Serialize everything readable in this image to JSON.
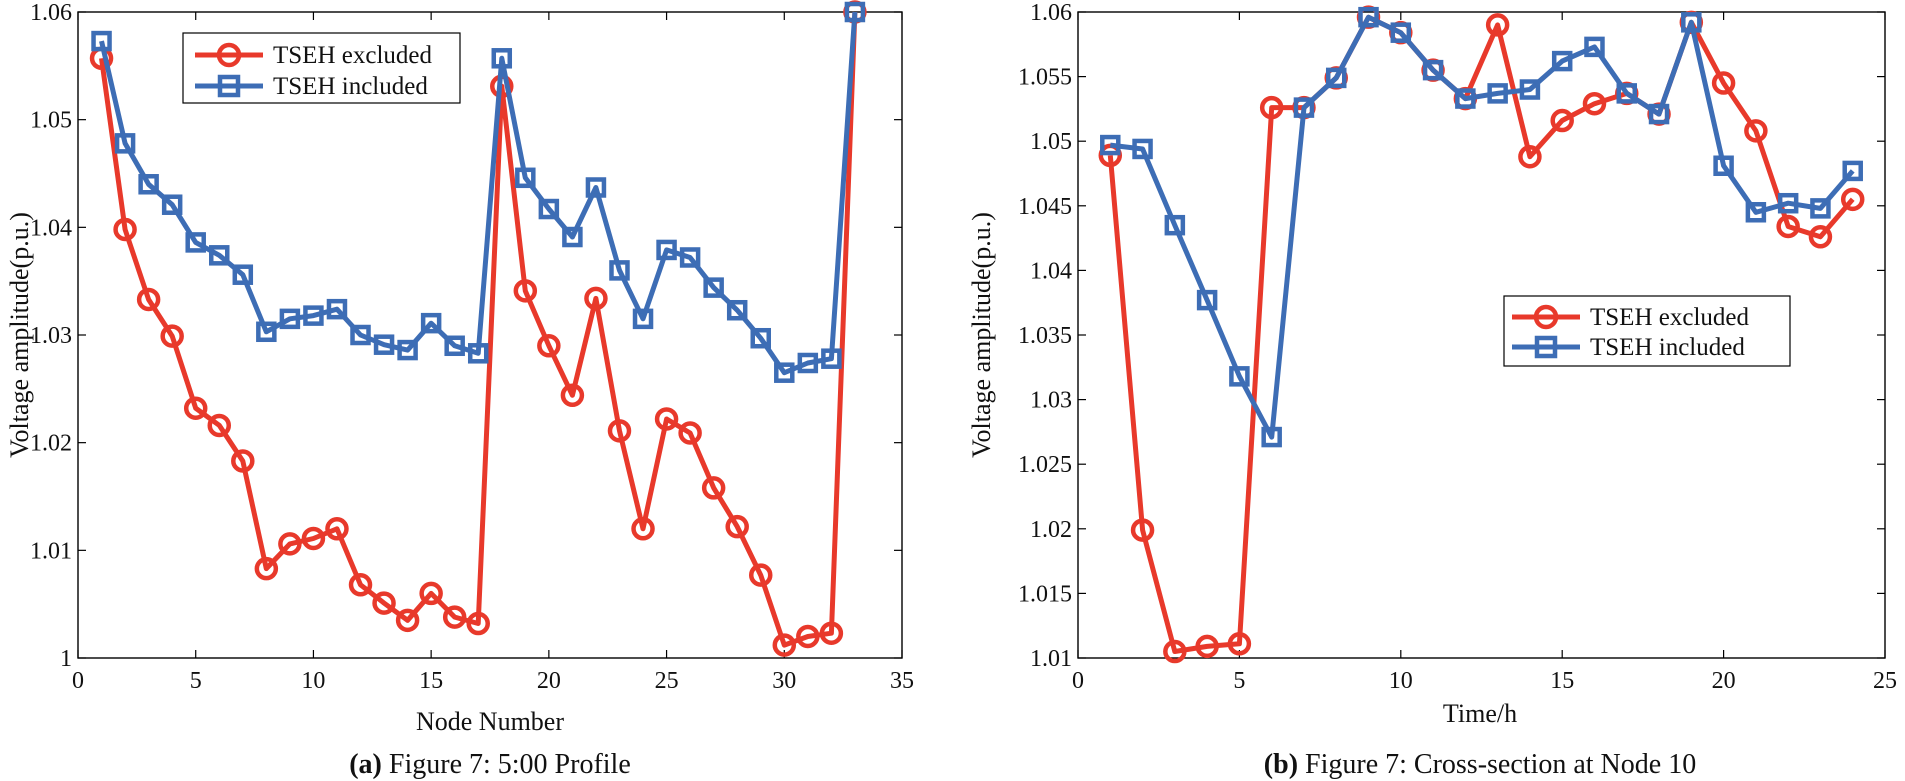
{
  "colors": {
    "excluded": "#E8392B",
    "included": "#3D6DB5"
  },
  "chart_data": [
    {
      "type": "line",
      "panel": "a",
      "caption_letter": "(a)",
      "caption_text": " Figure 7: 5:00 Profile",
      "xlabel": "Node Number",
      "ylabel": "Voltage amplitude(p.u.)",
      "xlim": [
        0,
        35
      ],
      "ylim": [
        1,
        1.06
      ],
      "xticks": [
        0,
        5,
        10,
        15,
        20,
        25,
        30,
        35
      ],
      "xtick_labels": [
        "0",
        "5",
        "10",
        "15",
        "20",
        "25",
        "30",
        "35"
      ],
      "yticks": [
        1,
        1.01,
        1.02,
        1.03,
        1.04,
        1.05,
        1.06
      ],
      "ytick_labels": [
        "1",
        "1.01",
        "1.02",
        "1.03",
        "1.04",
        "1.05",
        "1.06"
      ],
      "legend_position": "top-left",
      "x": [
        1,
        2,
        3,
        4,
        5,
        6,
        7,
        8,
        9,
        10,
        11,
        12,
        13,
        14,
        15,
        16,
        17,
        18,
        19,
        20,
        21,
        22,
        23,
        24,
        25,
        26,
        27,
        28,
        29,
        30,
        31,
        32,
        33
      ],
      "series": [
        {
          "name": "TSEH excluded",
          "key": "excluded",
          "marker": "circle",
          "values": [
            1.0557,
            1.0398,
            1.0333,
            1.0299,
            1.0232,
            1.0216,
            1.0183,
            1.0083,
            1.0106,
            1.0111,
            1.012,
            1.0068,
            1.0051,
            1.0035,
            1.006,
            1.0038,
            1.0032,
            1.0531,
            1.0341,
            1.029,
            1.0244,
            1.0334,
            1.0211,
            1.012,
            1.0222,
            1.0209,
            1.0158,
            1.0122,
            1.0077,
            1.0012,
            1.002,
            1.0023,
            1.06
          ]
        },
        {
          "name": "TSEH included",
          "key": "included",
          "marker": "square",
          "values": [
            1.0573,
            1.0478,
            1.044,
            1.0421,
            1.0386,
            1.0374,
            1.0356,
            1.0303,
            1.0315,
            1.0318,
            1.0324,
            1.03,
            1.0291,
            1.0286,
            1.0311,
            1.029,
            1.0283,
            1.0557,
            1.0446,
            1.0417,
            1.0391,
            1.0437,
            1.036,
            1.0315,
            1.0379,
            1.0372,
            1.0344,
            1.0323,
            1.0297,
            1.0265,
            1.0274,
            1.0278,
            1.06
          ]
        }
      ]
    },
    {
      "type": "line",
      "panel": "b",
      "caption_letter": "(b)",
      "caption_text": " Figure 7: Cross-section at Node 10",
      "xlabel": "Time/h",
      "ylabel": "Voltage amplitude(p.u.)",
      "xlim": [
        0,
        25
      ],
      "ylim": [
        1.01,
        1.06
      ],
      "xticks": [
        0,
        5,
        10,
        15,
        20,
        25
      ],
      "xtick_labels": [
        "0",
        "5",
        "10",
        "15",
        "20",
        "25"
      ],
      "yticks": [
        1.01,
        1.015,
        1.02,
        1.025,
        1.03,
        1.035,
        1.04,
        1.045,
        1.05,
        1.055,
        1.06
      ],
      "ytick_labels": [
        "1.01",
        "1.015",
        "1.02",
        "1.025",
        "1.03",
        "1.035",
        "1.04",
        "1.045",
        "1.05",
        "1.055",
        "1.06"
      ],
      "legend_position": "center-right",
      "x": [
        1,
        2,
        3,
        4,
        5,
        6,
        7,
        8,
        9,
        10,
        11,
        12,
        13,
        14,
        15,
        16,
        17,
        18,
        19,
        20,
        21,
        22,
        23,
        24
      ],
      "series": [
        {
          "name": "TSEH excluded",
          "key": "excluded",
          "marker": "circle",
          "values": [
            1.0489,
            1.0199,
            1.0105,
            1.0109,
            1.0111,
            1.0526,
            1.0526,
            1.0549,
            1.0596,
            1.0584,
            1.0555,
            1.0533,
            1.059,
            1.0488,
            1.0516,
            1.0529,
            1.0537,
            1.0521,
            1.0592,
            1.0545,
            1.0508,
            1.0434,
            1.0426,
            1.0455
          ]
        },
        {
          "name": "TSEH included",
          "key": "included",
          "marker": "square",
          "values": [
            1.0497,
            1.0494,
            1.0435,
            1.0377,
            1.0318,
            1.0271,
            1.0526,
            1.0549,
            1.0596,
            1.0584,
            1.0555,
            1.0533,
            1.0537,
            1.054,
            1.0562,
            1.0573,
            1.0537,
            1.0521,
            1.0592,
            1.0481,
            1.0445,
            1.0452,
            1.0448,
            1.0477
          ]
        }
      ]
    }
  ]
}
